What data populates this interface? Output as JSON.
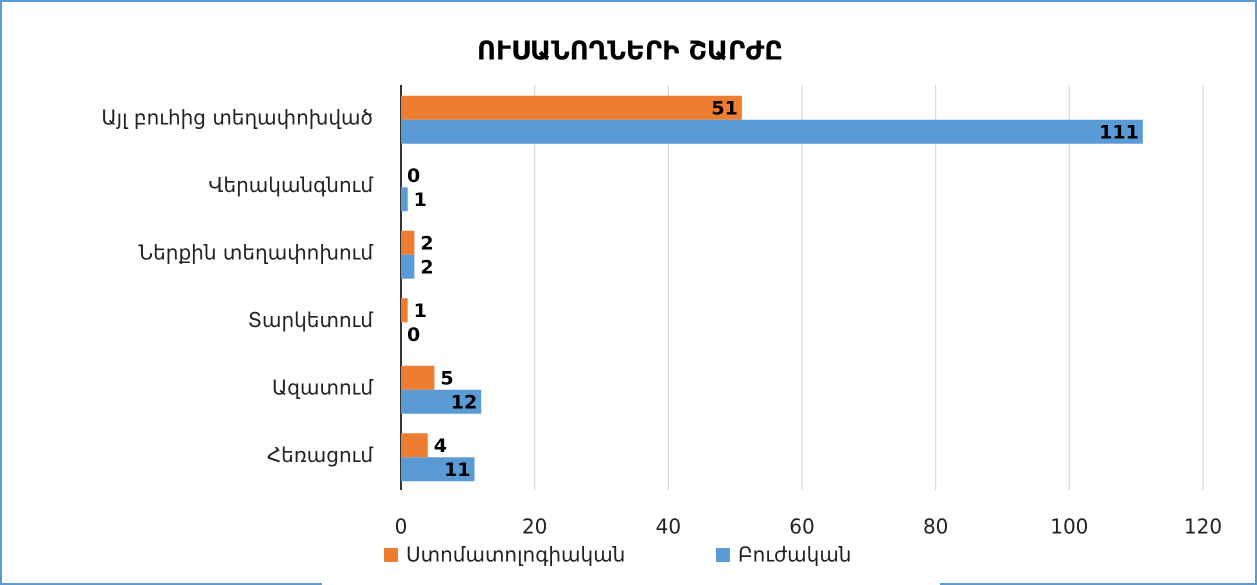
{
  "chart_data": {
    "type": "bar",
    "orientation": "horizontal",
    "title": "ՈՒՍԱՆՈՂՆԵՐԻ ՇԱՐԺԸ",
    "categories": [
      "Այլ բուհից տեղափոխված",
      "Վերականգնում",
      "Ներքին տեղափոխում",
      "Տարկետում",
      "Ազատում",
      "Հեռացում"
    ],
    "series": [
      {
        "name": "Ստոմատոլոգիական",
        "color": "#ed7d31",
        "values": [
          51,
          0,
          2,
          1,
          5,
          4
        ]
      },
      {
        "name": "Բուժական",
        "color": "#5b9bd5",
        "values": [
          111,
          1,
          2,
          0,
          12,
          11
        ]
      }
    ],
    "xlim": [
      0,
      120
    ],
    "xticks": [
      0,
      20,
      40,
      60,
      80,
      100,
      120
    ],
    "grid": true,
    "legend": "bottom"
  }
}
